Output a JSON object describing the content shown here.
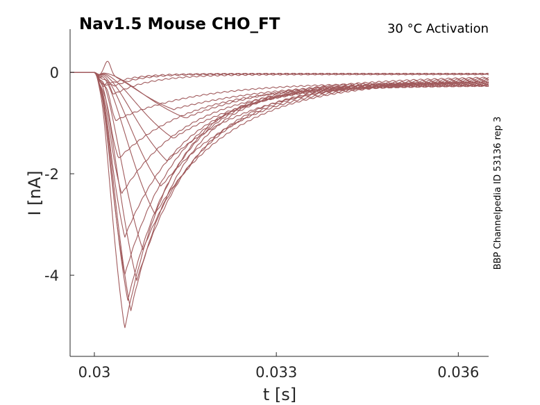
{
  "chart_data": {
    "type": "line",
    "title": "Nav1.5  Mouse  CHO_FT",
    "subtitle": "30 °C  Activation",
    "side_label": "BBP Channelpedia ID 53136 rep 3",
    "xlabel": "t [s]",
    "ylabel": "I [nA]",
    "xlim": [
      0.0296,
      0.0365
    ],
    "ylim": [
      -5.6,
      0.85
    ],
    "xticks": [
      0.03,
      0.033,
      0.036
    ],
    "xtick_labels": [
      "0.03",
      "0.033",
      "0.036"
    ],
    "yticks": [
      0,
      -2,
      -4
    ],
    "ytick_labels": [
      "0",
      "-2",
      "-4"
    ],
    "grid": false,
    "line_color": "#a05a5c",
    "stimulus_onset": 0.03,
    "series": [
      {
        "peak_time": 0.03015,
        "peak": -0.3,
        "tau": 0.0004,
        "end": -0.03,
        "pre": -0.02,
        "overshoot": 0.05
      },
      {
        "peak_time": 0.0302,
        "peak": -0.35,
        "tau": 0.00045,
        "end": -0.03,
        "pre": -0.02,
        "overshoot": 0.1
      },
      {
        "peak_time": 0.0303,
        "peak": -0.45,
        "tau": 0.0006,
        "end": -0.04,
        "pre": -0.03,
        "overshoot": 0.15
      },
      {
        "peak_time": 0.0313,
        "peak": -0.73,
        "tau": 0.0018,
        "end": -0.15,
        "pre": -0.05,
        "overshoot": 0.25
      },
      {
        "peak_time": 0.03035,
        "peak": -0.95,
        "tau": 0.0013,
        "end": -0.2,
        "pre": -0.08,
        "overshoot": 0.2
      },
      {
        "peak_time": 0.0304,
        "peak": -1.7,
        "tau": 0.0012,
        "end": -0.25,
        "pre": -0.1,
        "overshoot": 0.15
      },
      {
        "peak_time": 0.03045,
        "peak": -2.4,
        "tau": 0.0011,
        "end": -0.26,
        "pre": -0.1,
        "overshoot": 0.1
      },
      {
        "peak_time": 0.0305,
        "peak": -3.25,
        "tau": 0.001,
        "end": -0.26,
        "pre": -0.1,
        "overshoot": 0.05
      },
      {
        "peak_time": 0.0305,
        "peak": -4.0,
        "tau": 0.0009,
        "end": -0.25,
        "pre": -0.1,
        "overshoot": 0.0
      },
      {
        "peak_time": 0.03055,
        "peak": -4.5,
        "tau": 0.00085,
        "end": -0.24,
        "pre": -0.1,
        "overshoot": 0.0
      },
      {
        "peak_time": 0.0305,
        "peak": -5.05,
        "tau": 0.0008,
        "end": -0.23,
        "pre": -0.1,
        "overshoot": 0.0
      },
      {
        "peak_time": 0.0306,
        "peak": -4.7,
        "tau": 0.00085,
        "end": -0.22,
        "pre": -0.1,
        "overshoot": 0.0
      },
      {
        "peak_time": 0.0307,
        "peak": -4.1,
        "tau": 0.001,
        "end": -0.2,
        "pre": -0.1,
        "overshoot": 0.0
      },
      {
        "peak_time": 0.0308,
        "peak": -3.5,
        "tau": 0.0011,
        "end": -0.18,
        "pre": -0.1,
        "overshoot": 0.0
      },
      {
        "peak_time": 0.031,
        "peak": -2.8,
        "tau": 0.0013,
        "end": -0.15,
        "pre": -0.08,
        "overshoot": 0.0
      },
      {
        "peak_time": 0.0311,
        "peak": -2.25,
        "tau": 0.0014,
        "end": -0.12,
        "pre": -0.08,
        "overshoot": 0.0
      },
      {
        "peak_time": 0.0312,
        "peak": -1.75,
        "tau": 0.0015,
        "end": -0.1,
        "pre": -0.06,
        "overshoot": 0.0
      },
      {
        "peak_time": 0.0313,
        "peak": -1.3,
        "tau": 0.0016,
        "end": -0.08,
        "pre": -0.05,
        "overshoot": 0.0
      },
      {
        "peak_time": 0.0315,
        "peak": -0.9,
        "tau": 0.0017,
        "end": -0.06,
        "pre": -0.04,
        "overshoot": 0.0
      }
    ]
  }
}
